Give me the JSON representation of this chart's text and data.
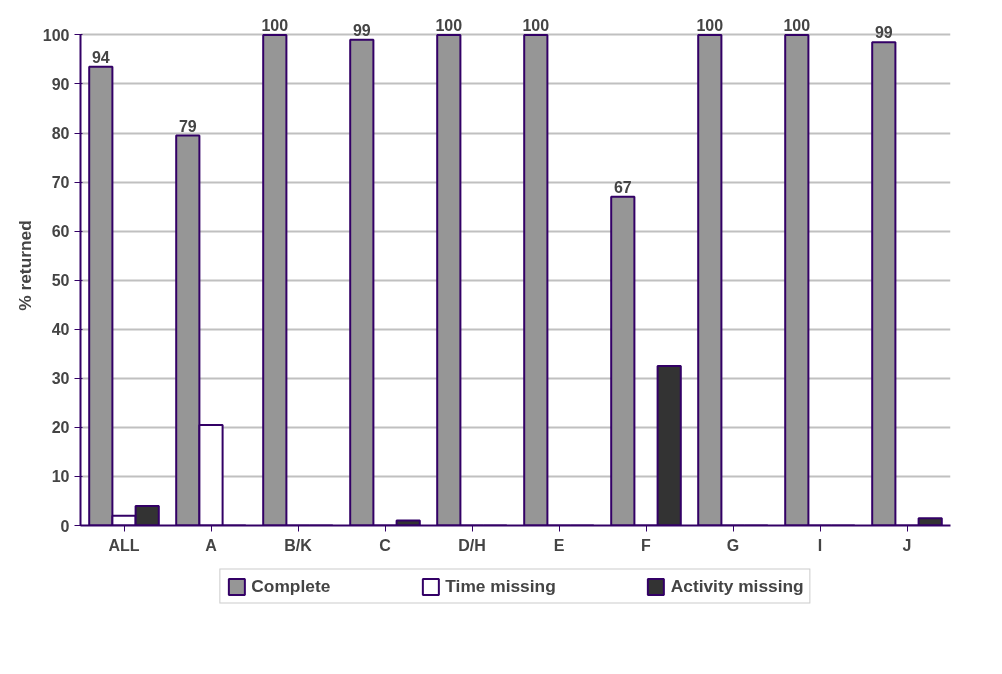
{
  "chart_data": {
    "type": "bar",
    "ylabel": "% returned",
    "categories": [
      "ALL",
      "A",
      "B/K",
      "C",
      "D/H",
      "E",
      "F",
      "G",
      "I",
      "J"
    ],
    "series": [
      {
        "name": "Complete",
        "color": "#969696",
        "values": [
          93.5,
          79.5,
          100,
          99,
          100,
          100,
          67,
          100,
          100,
          98.5
        ],
        "value_labels": [
          "94",
          "79",
          "100",
          "99",
          "100",
          "100",
          "67",
          "100",
          "100",
          "99"
        ]
      },
      {
        "name": "Time missing",
        "color": "#ffffff",
        "values": [
          2,
          20.5,
          0,
          0,
          0,
          0,
          0,
          0,
          0,
          0
        ]
      },
      {
        "name": "Activity missing",
        "color": "#333333",
        "values": [
          4,
          0,
          0,
          1,
          0,
          0,
          32.5,
          0,
          0,
          1.5
        ]
      }
    ],
    "ylim": [
      0,
      100
    ],
    "yticks": [
      0,
      10,
      20,
      30,
      40,
      50,
      60,
      70,
      80,
      90,
      100
    ],
    "grid": "y",
    "legend": "bottom"
  }
}
